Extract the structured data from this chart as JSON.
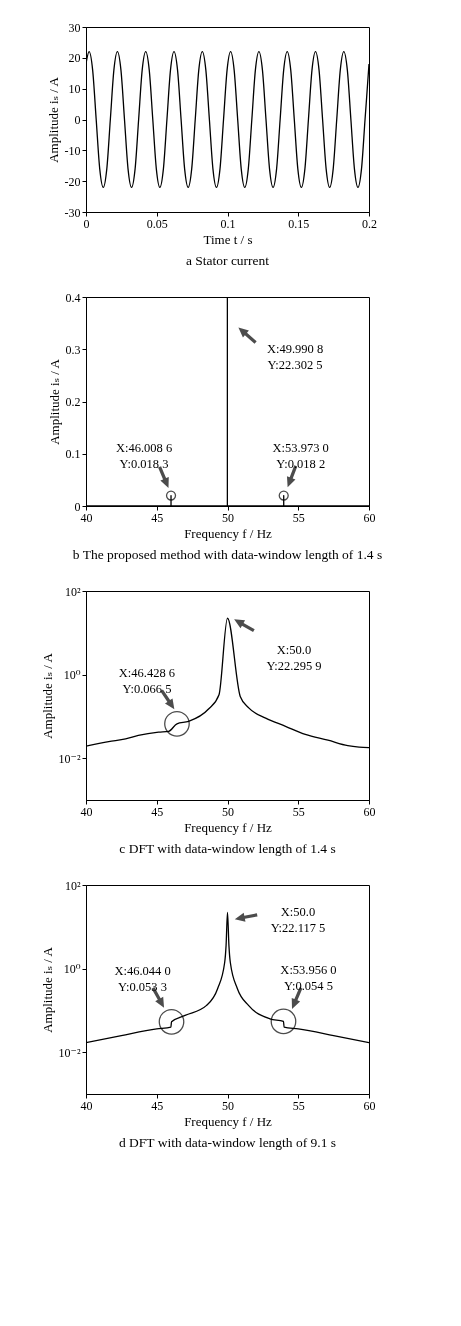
{
  "chart_data": [
    {
      "type": "line",
      "title": "a Stator current",
      "xlabel": "Time t / s",
      "ylabel": "Amplitude iₛ / A",
      "xlim": [
        0,
        0.2
      ],
      "xticks": [
        0,
        0.05,
        0.1,
        0.15,
        0.2
      ],
      "ylim": [
        -30,
        30
      ],
      "yticks": [
        -30,
        -20,
        -10,
        0,
        10,
        20,
        30
      ],
      "series": [
        {
          "color": "#000000",
          "x": [
            0,
            0.0022,
            0.0047,
            0.0072,
            0.0097,
            0.0122,
            0.0147,
            0.0172,
            0.0197,
            0.0222,
            0.0247,
            0.0272,
            0.0297,
            0.0322,
            0.0347,
            0.0372,
            0.0397,
            0.0422,
            0.0447,
            0.0472,
            0.0497,
            0.0522,
            0.0547,
            0.0572,
            0.0597,
            0.0622,
            0.0647,
            0.0672,
            0.0697,
            0.0722,
            0.0747,
            0.0772,
            0.0797,
            0.0822,
            0.0847,
            0.0872,
            0.0897,
            0.0922,
            0.0947,
            0.0972,
            0.0997,
            0.1022,
            0.1047,
            0.1072,
            0.1097,
            0.1122,
            0.1147,
            0.1172,
            0.1197,
            0.1222,
            0.1247,
            0.1272,
            0.1297,
            0.1322,
            0.1347,
            0.1372,
            0.1397,
            0.1422,
            0.1447,
            0.1472,
            0.1497,
            0.1522,
            0.1547,
            0.1572,
            0.1597,
            0.1622,
            0.1647,
            0.1672,
            0.1697,
            0.1722,
            0.1747,
            0.1772,
            0.1797,
            0.1822,
            0.1847,
            0.1872,
            0.1897,
            0.1922,
            0.1947,
            0.1972,
            0.1997,
            0.2
          ],
          "values": [
            18,
            22,
            16,
            0,
            -16,
            -22,
            -16,
            0,
            16,
            22,
            16,
            0,
            -16,
            -22,
            -16,
            0,
            16,
            22,
            16,
            0,
            -16,
            -22,
            -16,
            0,
            16,
            22,
            16,
            0,
            -16,
            -22,
            -16,
            0,
            16,
            22,
            16,
            0,
            -16,
            -22,
            -16,
            0,
            16,
            22,
            16,
            0,
            -16,
            -22,
            -16,
            0,
            16,
            22,
            16,
            0,
            -16,
            -22,
            -16,
            0,
            16,
            22,
            16,
            0,
            -16,
            -22,
            -16,
            0,
            16,
            22,
            16,
            0,
            -16,
            -22,
            -16,
            0,
            16,
            22,
            16,
            0,
            -16,
            -22,
            -16,
            0,
            16,
            18
          ]
        }
      ]
    },
    {
      "type": "line",
      "title": "b The proposed method with data-window length of 1.4 s",
      "xlabel": "Frequency f / Hz",
      "ylabel": "Amplitude iₛ / A",
      "xlim": [
        40,
        60
      ],
      "xticks": [
        40,
        45,
        50,
        55,
        60
      ],
      "ylim": [
        0,
        0.4
      ],
      "yticks": [
        0,
        0.1,
        0.2,
        0.3,
        0.4
      ],
      "series": [
        {
          "color": "#000000",
          "x": [
            40,
            46.0086,
            46.0086,
            46.0086,
            53.973,
            53.973,
            53.973,
            60
          ],
          "values": [
            0,
            0,
            0.02,
            0,
            0,
            0.02,
            0,
            0
          ]
        },
        {
          "type": "scatter",
          "marker": "circle",
          "color": "#000000",
          "x": [
            46.0086,
            53.973
          ],
          "values": [
            0.02,
            0.02
          ]
        }
      ],
      "ref_lines": [
        {
          "axis": "x",
          "value": 49.9908,
          "color": "#000000"
        }
      ],
      "annotations": [
        {
          "text": "X:46.008 6\nY:0.018 3",
          "x": 46.0086,
          "y": 0.0183
        },
        {
          "text": "X:53.973 0\nY:0.018 2",
          "x": 53.973,
          "y": 0.0182
        },
        "X:49.990 8\nY:22.302 5"
      ]
    },
    {
      "type": "line",
      "title": "c DFT with data-window length of 1.4 s",
      "xlabel": "Frequency f / Hz",
      "ylabel": "Amplitude iₛ / A",
      "log": true,
      "xlim": [
        40,
        60
      ],
      "xticks": [
        40,
        45,
        50,
        55,
        60
      ],
      "ylim": [
        0.001,
        100
      ],
      "yticks": [
        {
          "value": 0.01,
          "label": "10⁻²"
        },
        {
          "value": 1,
          "label": "10⁰"
        },
        {
          "value": 100,
          "label": "10²"
        }
      ],
      "series": [
        {
          "color": "#000000",
          "x": [
            40,
            41.6,
            42.8,
            43.7,
            45.13,
            45.84,
            46.4286,
            47.25,
            48.66,
            49.4,
            50.0,
            50.9,
            51.5,
            52.7,
            54.1,
            55.5,
            57.1,
            58.5,
            59.3,
            60
          ],
          "values": [
            0.0195,
            0.025,
            0.029,
            0.035,
            0.042,
            0.044,
            0.0665,
            0.076,
            0.15,
            0.33,
            22.2959,
            0.3,
            0.16,
            0.091,
            0.058,
            0.037,
            0.027,
            0.02,
            0.0185,
            0.018
          ]
        },
        {
          "type": "scatter",
          "marker": "circle",
          "color": "#000000",
          "x": [
            46.4286
          ],
          "values": [
            0.0665
          ]
        }
      ],
      "annotations": [
        {
          "text": "X:46.428 6\nY:0.066 5",
          "x": 46.4286,
          "y": 0.0665
        },
        "X:50.0\nY:22.295 9"
      ]
    },
    {
      "type": "line",
      "title": "d DFT with data-window length of 9.1 s",
      "xlabel": "Frequency f / Hz",
      "ylabel": "Amplitude iₛ / A",
      "log": true,
      "xlim": [
        40,
        60
      ],
      "xticks": [
        40,
        45,
        50,
        55,
        60
      ],
      "ylim": [
        0.001,
        100
      ],
      "yticks": [
        {
          "value": 0.01,
          "label": "10⁻²"
        },
        {
          "value": 1,
          "label": "10⁰"
        },
        {
          "value": 100,
          "label": "10²"
        }
      ],
      "series": [
        {
          "color": "#000000",
          "x": [
            40,
            42.5,
            45,
            46.0,
            46.044,
            47.0,
            48.5,
            49.3,
            49.8,
            49.9,
            50.0,
            50.1,
            50.2,
            50.7,
            51.5,
            53.0,
            53.956,
            54.0,
            55,
            57.5,
            60
          ],
          "values": [
            0.017,
            0.025,
            0.036,
            0.04,
            0.0533,
            0.076,
            0.13,
            0.33,
            1.4,
            3.6,
            22.1175,
            3.6,
            1.4,
            0.33,
            0.13,
            0.063,
            0.0545,
            0.04,
            0.036,
            0.025,
            0.017
          ]
        },
        {
          "type": "scatter",
          "marker": "circle",
          "color": "#000000",
          "x": [
            46.044,
            53.956
          ],
          "values": [
            0.0533,
            0.0545
          ]
        }
      ],
      "annotations": [
        {
          "text": "X:46.044 0\nY:0.053 3",
          "x": 46.044,
          "y": 0.0533
        },
        {
          "text": "X:53.956 0\nY:0.054 5",
          "x": 53.956,
          "y": 0.0545
        },
        "X:50.0\nY:22.117 5"
      ]
    }
  ]
}
